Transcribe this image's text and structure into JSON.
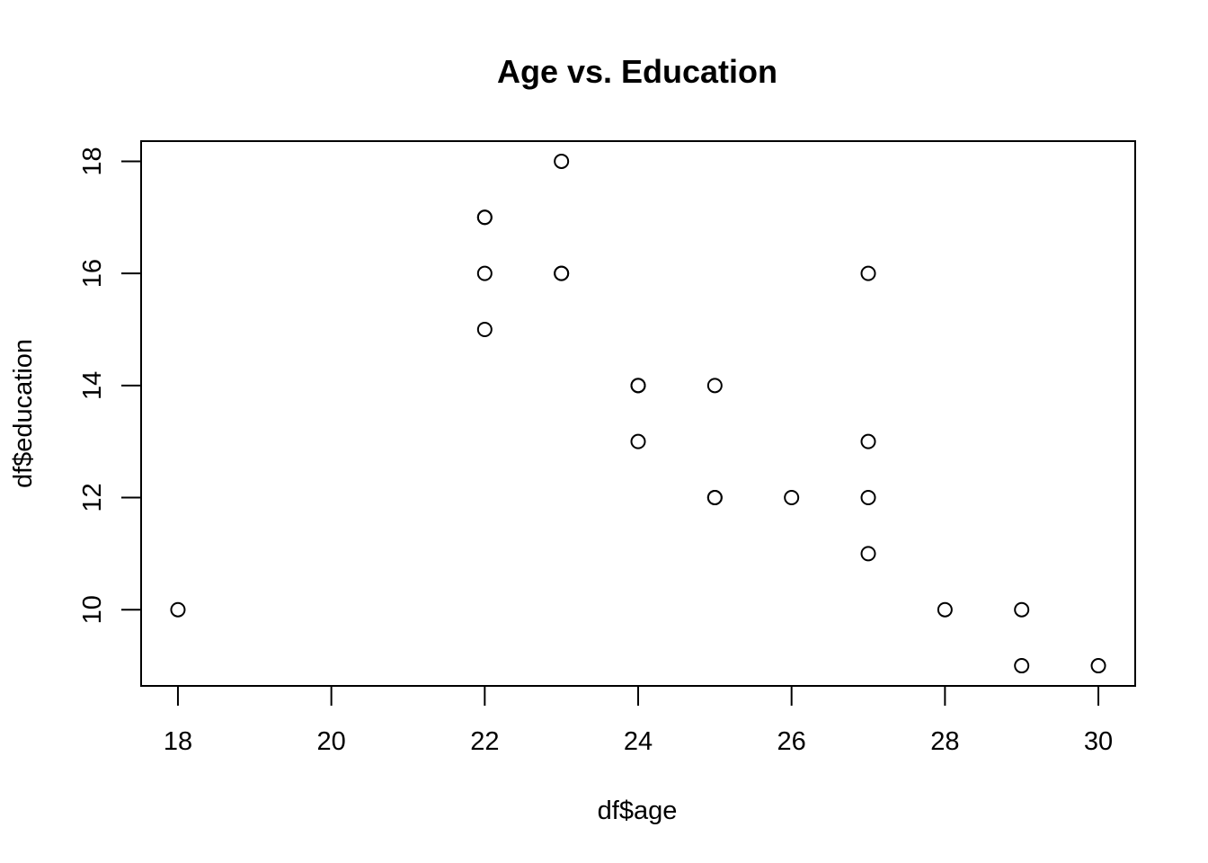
{
  "chart_data": {
    "type": "scatter",
    "title": "Age vs. Education",
    "xlabel": "df$age",
    "ylabel": "df$education",
    "xlim": [
      17.52,
      30.48
    ],
    "ylim": [
      8.64,
      18.36
    ],
    "xticks": [
      18,
      20,
      22,
      24,
      26,
      28,
      30
    ],
    "yticks": [
      10,
      12,
      14,
      16,
      18
    ],
    "grid": false,
    "marker": "open-circle",
    "color": "#000000",
    "points": [
      {
        "x": 18,
        "y": 10
      },
      {
        "x": 22,
        "y": 17
      },
      {
        "x": 22,
        "y": 17
      },
      {
        "x": 22,
        "y": 16
      },
      {
        "x": 22,
        "y": 15
      },
      {
        "x": 23,
        "y": 18
      },
      {
        "x": 23,
        "y": 16
      },
      {
        "x": 23,
        "y": 16
      },
      {
        "x": 24,
        "y": 14
      },
      {
        "x": 24,
        "y": 14
      },
      {
        "x": 24,
        "y": 13
      },
      {
        "x": 25,
        "y": 14
      },
      {
        "x": 25,
        "y": 12
      },
      {
        "x": 25,
        "y": 12
      },
      {
        "x": 26,
        "y": 12
      },
      {
        "x": 27,
        "y": 16
      },
      {
        "x": 27,
        "y": 13
      },
      {
        "x": 27,
        "y": 12
      },
      {
        "x": 27,
        "y": 11
      },
      {
        "x": 28,
        "y": 10
      },
      {
        "x": 29,
        "y": 10
      },
      {
        "x": 29,
        "y": 9
      },
      {
        "x": 30,
        "y": 9
      }
    ]
  }
}
